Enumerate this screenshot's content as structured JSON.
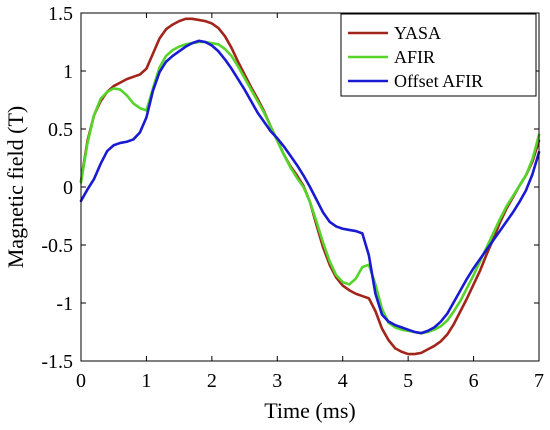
{
  "chart_data": {
    "type": "line",
    "title": "",
    "xlabel": "Time (ms)",
    "ylabel": "Magnetic field (T)",
    "xlim": [
      0,
      7
    ],
    "ylim": [
      -1.5,
      1.5
    ],
    "x_ticks": [
      "0",
      "1",
      "2",
      "3",
      "4",
      "5",
      "6",
      "7"
    ],
    "y_ticks": [
      "-1.5",
      "-1",
      "-0.5",
      "0",
      "0.5",
      "1",
      "1.5"
    ],
    "grid": false,
    "legend_position": "top-right",
    "series": [
      {
        "name": "YASA",
        "color": "#a2251c",
        "points": [
          [
            0.0,
            0.05
          ],
          [
            0.1,
            0.4
          ],
          [
            0.2,
            0.62
          ],
          [
            0.3,
            0.74
          ],
          [
            0.4,
            0.82
          ],
          [
            0.5,
            0.87
          ],
          [
            0.6,
            0.9
          ],
          [
            0.7,
            0.93
          ],
          [
            0.8,
            0.95
          ],
          [
            0.9,
            0.97
          ],
          [
            1.0,
            1.02
          ],
          [
            1.1,
            1.15
          ],
          [
            1.2,
            1.28
          ],
          [
            1.3,
            1.36
          ],
          [
            1.4,
            1.4
          ],
          [
            1.5,
            1.43
          ],
          [
            1.6,
            1.45
          ],
          [
            1.7,
            1.45
          ],
          [
            1.8,
            1.44
          ],
          [
            1.9,
            1.43
          ],
          [
            2.0,
            1.41
          ],
          [
            2.1,
            1.37
          ],
          [
            2.2,
            1.3
          ],
          [
            2.3,
            1.2
          ],
          [
            2.4,
            1.08
          ],
          [
            2.5,
            0.97
          ],
          [
            2.6,
            0.86
          ],
          [
            2.7,
            0.76
          ],
          [
            2.8,
            0.65
          ],
          [
            2.9,
            0.52
          ],
          [
            3.0,
            0.4
          ],
          [
            3.1,
            0.28
          ],
          [
            3.2,
            0.18
          ],
          [
            3.3,
            0.1
          ],
          [
            3.4,
            0.01
          ],
          [
            3.5,
            -0.13
          ],
          [
            3.6,
            -0.33
          ],
          [
            3.7,
            -0.52
          ],
          [
            3.8,
            -0.67
          ],
          [
            3.9,
            -0.78
          ],
          [
            4.0,
            -0.85
          ],
          [
            4.1,
            -0.89
          ],
          [
            4.2,
            -0.92
          ],
          [
            4.3,
            -0.94
          ],
          [
            4.4,
            -0.96
          ],
          [
            4.5,
            -1.07
          ],
          [
            4.6,
            -1.22
          ],
          [
            4.7,
            -1.32
          ],
          [
            4.8,
            -1.39
          ],
          [
            4.9,
            -1.42
          ],
          [
            5.0,
            -1.44
          ],
          [
            5.1,
            -1.44
          ],
          [
            5.2,
            -1.43
          ],
          [
            5.3,
            -1.4
          ],
          [
            5.4,
            -1.37
          ],
          [
            5.5,
            -1.33
          ],
          [
            5.6,
            -1.27
          ],
          [
            5.7,
            -1.18
          ],
          [
            5.8,
            -1.07
          ],
          [
            5.9,
            -0.96
          ],
          [
            6.0,
            -0.84
          ],
          [
            6.1,
            -0.72
          ],
          [
            6.2,
            -0.58
          ],
          [
            6.3,
            -0.45
          ],
          [
            6.4,
            -0.31
          ],
          [
            6.5,
            -0.19
          ],
          [
            6.6,
            -0.09
          ],
          [
            6.7,
            0.01
          ],
          [
            6.8,
            0.1
          ],
          [
            6.9,
            0.22
          ],
          [
            7.0,
            0.4
          ]
        ]
      },
      {
        "name": "AFIR",
        "color": "#55d42a",
        "points": [
          [
            0.0,
            0.04
          ],
          [
            0.1,
            0.38
          ],
          [
            0.2,
            0.62
          ],
          [
            0.3,
            0.76
          ],
          [
            0.4,
            0.82
          ],
          [
            0.5,
            0.85
          ],
          [
            0.6,
            0.84
          ],
          [
            0.7,
            0.79
          ],
          [
            0.8,
            0.72
          ],
          [
            0.9,
            0.68
          ],
          [
            1.0,
            0.66
          ],
          [
            1.1,
            0.85
          ],
          [
            1.2,
            1.03
          ],
          [
            1.3,
            1.13
          ],
          [
            1.4,
            1.18
          ],
          [
            1.5,
            1.21
          ],
          [
            1.6,
            1.23
          ],
          [
            1.7,
            1.24
          ],
          [
            1.8,
            1.25
          ],
          [
            1.9,
            1.25
          ],
          [
            2.0,
            1.24
          ],
          [
            2.1,
            1.23
          ],
          [
            2.2,
            1.19
          ],
          [
            2.3,
            1.13
          ],
          [
            2.4,
            1.04
          ],
          [
            2.5,
            0.94
          ],
          [
            2.6,
            0.84
          ],
          [
            2.7,
            0.74
          ],
          [
            2.8,
            0.64
          ],
          [
            2.9,
            0.52
          ],
          [
            3.0,
            0.4
          ],
          [
            3.1,
            0.28
          ],
          [
            3.2,
            0.17
          ],
          [
            3.3,
            0.08
          ],
          [
            3.4,
            0.0
          ],
          [
            3.5,
            -0.13
          ],
          [
            3.6,
            -0.3
          ],
          [
            3.7,
            -0.48
          ],
          [
            3.8,
            -0.64
          ],
          [
            3.9,
            -0.76
          ],
          [
            4.0,
            -0.82
          ],
          [
            4.1,
            -0.84
          ],
          [
            4.2,
            -0.79
          ],
          [
            4.3,
            -0.69
          ],
          [
            4.4,
            -0.67
          ],
          [
            4.5,
            -0.84
          ],
          [
            4.6,
            -1.05
          ],
          [
            4.7,
            -1.17
          ],
          [
            4.8,
            -1.21
          ],
          [
            4.9,
            -1.23
          ],
          [
            5.0,
            -1.24
          ],
          [
            5.1,
            -1.25
          ],
          [
            5.2,
            -1.26
          ],
          [
            5.3,
            -1.25
          ],
          [
            5.4,
            -1.23
          ],
          [
            5.5,
            -1.2
          ],
          [
            5.6,
            -1.15
          ],
          [
            5.7,
            -1.07
          ],
          [
            5.8,
            -0.98
          ],
          [
            5.9,
            -0.87
          ],
          [
            6.0,
            -0.76
          ],
          [
            6.1,
            -0.64
          ],
          [
            6.2,
            -0.52
          ],
          [
            6.3,
            -0.4
          ],
          [
            6.4,
            -0.28
          ],
          [
            6.5,
            -0.17
          ],
          [
            6.6,
            -0.08
          ],
          [
            6.7,
            0.01
          ],
          [
            6.8,
            0.1
          ],
          [
            6.9,
            0.24
          ],
          [
            7.0,
            0.45
          ]
        ]
      },
      {
        "name": "Offset AFIR",
        "color": "#1a1ad2",
        "points": [
          [
            0.0,
            -0.12
          ],
          [
            0.1,
            -0.02
          ],
          [
            0.2,
            0.07
          ],
          [
            0.3,
            0.2
          ],
          [
            0.4,
            0.31
          ],
          [
            0.5,
            0.36
          ],
          [
            0.6,
            0.38
          ],
          [
            0.7,
            0.39
          ],
          [
            0.8,
            0.41
          ],
          [
            0.9,
            0.47
          ],
          [
            1.0,
            0.6
          ],
          [
            1.1,
            0.83
          ],
          [
            1.2,
            0.99
          ],
          [
            1.3,
            1.08
          ],
          [
            1.4,
            1.13
          ],
          [
            1.5,
            1.17
          ],
          [
            1.6,
            1.21
          ],
          [
            1.7,
            1.24
          ],
          [
            1.8,
            1.26
          ],
          [
            1.9,
            1.25
          ],
          [
            2.0,
            1.22
          ],
          [
            2.1,
            1.17
          ],
          [
            2.2,
            1.1
          ],
          [
            2.3,
            1.02
          ],
          [
            2.4,
            0.93
          ],
          [
            2.5,
            0.84
          ],
          [
            2.6,
            0.74
          ],
          [
            2.7,
            0.64
          ],
          [
            2.8,
            0.56
          ],
          [
            2.9,
            0.48
          ],
          [
            3.0,
            0.42
          ],
          [
            3.1,
            0.35
          ],
          [
            3.2,
            0.27
          ],
          [
            3.3,
            0.19
          ],
          [
            3.4,
            0.1
          ],
          [
            3.5,
            0.0
          ],
          [
            3.6,
            -0.11
          ],
          [
            3.7,
            -0.22
          ],
          [
            3.8,
            -0.3
          ],
          [
            3.9,
            -0.34
          ],
          [
            4.0,
            -0.36
          ],
          [
            4.1,
            -0.37
          ],
          [
            4.2,
            -0.38
          ],
          [
            4.3,
            -0.4
          ],
          [
            4.4,
            -0.59
          ],
          [
            4.5,
            -0.92
          ],
          [
            4.6,
            -1.1
          ],
          [
            4.7,
            -1.16
          ],
          [
            4.8,
            -1.19
          ],
          [
            4.9,
            -1.21
          ],
          [
            5.0,
            -1.23
          ],
          [
            5.1,
            -1.25
          ],
          [
            5.2,
            -1.26
          ],
          [
            5.3,
            -1.24
          ],
          [
            5.4,
            -1.21
          ],
          [
            5.5,
            -1.16
          ],
          [
            5.6,
            -1.09
          ],
          [
            5.7,
            -0.99
          ],
          [
            5.8,
            -0.89
          ],
          [
            5.9,
            -0.79
          ],
          [
            6.0,
            -0.7
          ],
          [
            6.1,
            -0.62
          ],
          [
            6.2,
            -0.54
          ],
          [
            6.3,
            -0.46
          ],
          [
            6.4,
            -0.38
          ],
          [
            6.5,
            -0.3
          ],
          [
            6.6,
            -0.22
          ],
          [
            6.7,
            -0.13
          ],
          [
            6.8,
            -0.03
          ],
          [
            6.9,
            0.11
          ],
          [
            7.0,
            0.3
          ]
        ]
      }
    ]
  }
}
